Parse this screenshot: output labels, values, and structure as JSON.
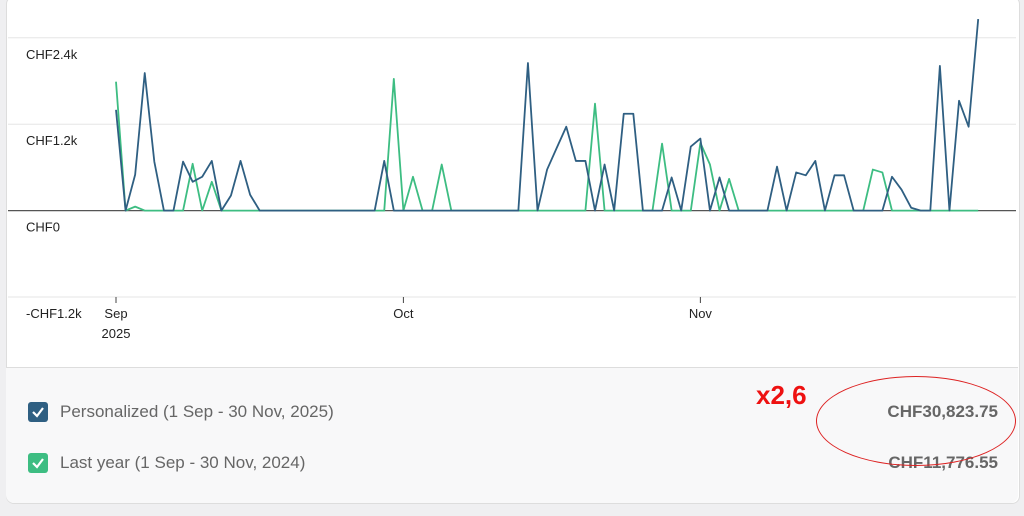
{
  "chart_data": {
    "type": "line",
    "categories": [
      "Sep",
      null,
      null,
      null,
      null,
      null,
      null,
      null,
      null,
      null,
      null,
      null,
      null,
      null,
      null,
      null,
      null,
      null,
      null,
      null,
      null,
      null,
      null,
      null,
      null,
      null,
      null,
      null,
      null,
      null,
      "Oct",
      null,
      null,
      null,
      null,
      null,
      null,
      null,
      null,
      null,
      null,
      null,
      null,
      null,
      null,
      null,
      null,
      null,
      null,
      null,
      null,
      null,
      null,
      null,
      null,
      null,
      null,
      null,
      null,
      null,
      null,
      "Nov",
      null,
      null,
      null,
      null,
      null,
      null,
      null,
      null,
      null,
      null,
      null,
      null,
      null,
      null,
      null,
      null,
      null,
      null,
      null,
      null,
      null,
      null,
      null,
      null,
      null,
      null,
      null,
      null,
      null
    ],
    "x_sublabel": "2025",
    "ylim": [
      -1200,
      2800
    ],
    "yticks": [
      {
        "value": 2400,
        "label": "CHF2.4k"
      },
      {
        "value": 1200,
        "label": "CHF1.2k"
      },
      {
        "value": 0,
        "label": "CHF0"
      },
      {
        "value": -1200,
        "label": "-CHF1.2k"
      }
    ],
    "grid": true,
    "series": [
      {
        "name": "Personalized (1 Sep - 30 Nov, 2025)",
        "color": "#2f5f82",
        "total": 30823.75,
        "total_label": "CHF30,823.75",
        "values": [
          1400,
          0,
          500,
          1910,
          680,
          0,
          0,
          680,
          400,
          470,
          690,
          0,
          210,
          690,
          220,
          0,
          0,
          0,
          0,
          0,
          0,
          0,
          0,
          0,
          0,
          0,
          0,
          0,
          690,
          0,
          0,
          0,
          0,
          0,
          0,
          0,
          0,
          0,
          0,
          0,
          0,
          0,
          0,
          2050,
          0,
          570,
          870,
          1165,
          690,
          690,
          0,
          640,
          0,
          1345,
          1345,
          0,
          0,
          0,
          460,
          0,
          890,
          1000,
          0,
          460,
          0,
          0,
          0,
          0,
          0,
          610,
          0,
          530,
          490,
          690,
          0,
          490,
          490,
          0,
          0,
          0,
          0,
          470,
          290,
          40,
          0,
          0,
          2010,
          0,
          1525,
          1165,
          2660
        ]
      },
      {
        "name": "Last year (1 Sep - 30 Nov, 2024)",
        "color": "#3dbd82",
        "total": 11776.55,
        "total_label": "CHF11,776.55",
        "values": [
          1790,
          0,
          55,
          0,
          0,
          0,
          0,
          0,
          650,
          0,
          400,
          0,
          0,
          0,
          0,
          0,
          0,
          0,
          0,
          0,
          0,
          0,
          0,
          0,
          0,
          0,
          0,
          0,
          0,
          1830,
          0,
          470,
          0,
          0,
          640,
          0,
          0,
          0,
          0,
          0,
          0,
          0,
          0,
          0,
          0,
          0,
          0,
          0,
          0,
          0,
          1485,
          0,
          0,
          0,
          0,
          0,
          0,
          930,
          0,
          0,
          0,
          940,
          640,
          0,
          440,
          0,
          0,
          0,
          0,
          0,
          0,
          0,
          0,
          0,
          0,
          0,
          0,
          0,
          0,
          570,
          530,
          0,
          0,
          0,
          0,
          0,
          0,
          0,
          0,
          0,
          0
        ]
      }
    ],
    "annotation": "x2,6"
  }
}
